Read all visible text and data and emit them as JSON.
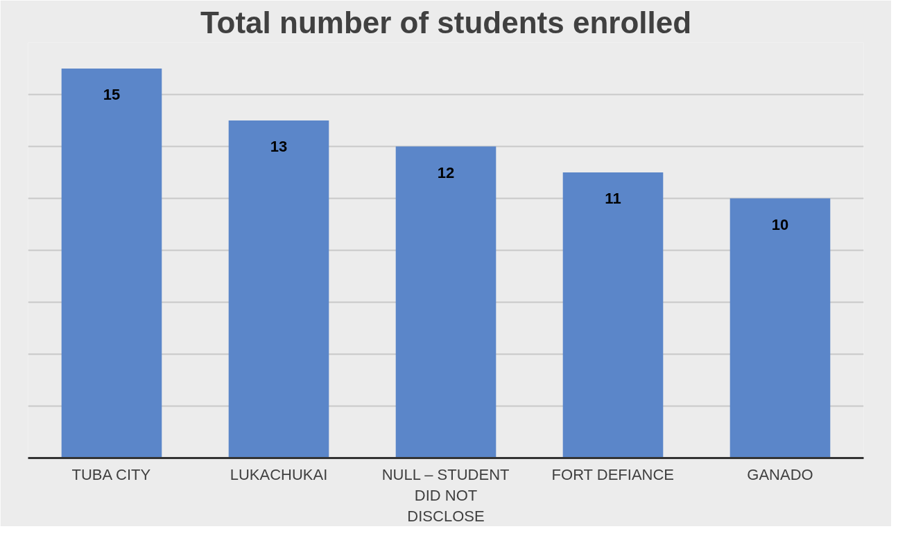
{
  "chart_data": {
    "type": "bar",
    "title": "Total number of students enrolled",
    "categories": [
      "TUBA CITY",
      "LUKACHUKAI",
      "NULL – STUDENT DID NOT DISCLOSE",
      "FORT DEFIANCE",
      "GANADO"
    ],
    "values": [
      15,
      13,
      12,
      11,
      10
    ],
    "color": "#5b86c9",
    "data_labels": true,
    "ylim": [
      0,
      16
    ],
    "yticks": [
      {
        "value": 0,
        "label": null
      },
      {
        "value": 2,
        "label": null
      },
      {
        "value": 4,
        "label": null
      },
      {
        "value": 6,
        "label": null
      },
      {
        "value": 8,
        "label": null
      },
      {
        "value": 10,
        "label": null
      },
      {
        "value": 12,
        "label": null
      },
      {
        "value": 14,
        "label": null
      },
      {
        "value": 16,
        "label": null
      }
    ],
    "grid": "y",
    "tick_labels": "x"
  }
}
